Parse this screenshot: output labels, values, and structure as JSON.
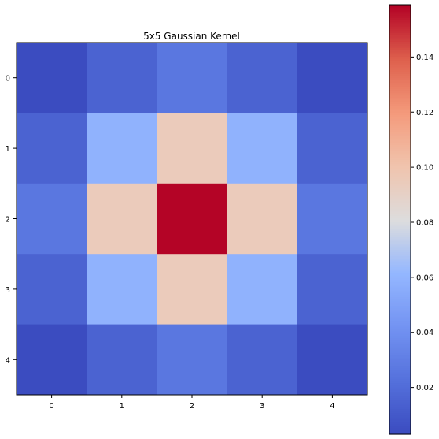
{
  "chart_data": {
    "type": "heatmap",
    "title": "5x5 Gaussian Kernel",
    "xlabel": "",
    "ylabel": "",
    "x_tick_labels": [
      "0",
      "1",
      "2",
      "3",
      "4"
    ],
    "y_tick_labels": [
      "0",
      "1",
      "2",
      "3",
      "4"
    ],
    "values": [
      [
        0.003,
        0.015,
        0.026,
        0.015,
        0.003
      ],
      [
        0.015,
        0.059,
        0.095,
        0.059,
        0.015
      ],
      [
        0.026,
        0.095,
        0.159,
        0.095,
        0.026
      ],
      [
        0.015,
        0.059,
        0.095,
        0.059,
        0.015
      ],
      [
        0.003,
        0.015,
        0.026,
        0.015,
        0.003
      ]
    ],
    "colormap": "coolwarm",
    "colorbar": {
      "range": [
        0.003,
        0.159
      ],
      "ticks": [
        0.02,
        0.04,
        0.06,
        0.08,
        0.1,
        0.12,
        0.14
      ],
      "tick_labels": [
        "0.02",
        "0.04",
        "0.06",
        "0.08",
        "0.10",
        "0.12",
        "0.14"
      ],
      "placement": "right"
    },
    "grid": false
  }
}
